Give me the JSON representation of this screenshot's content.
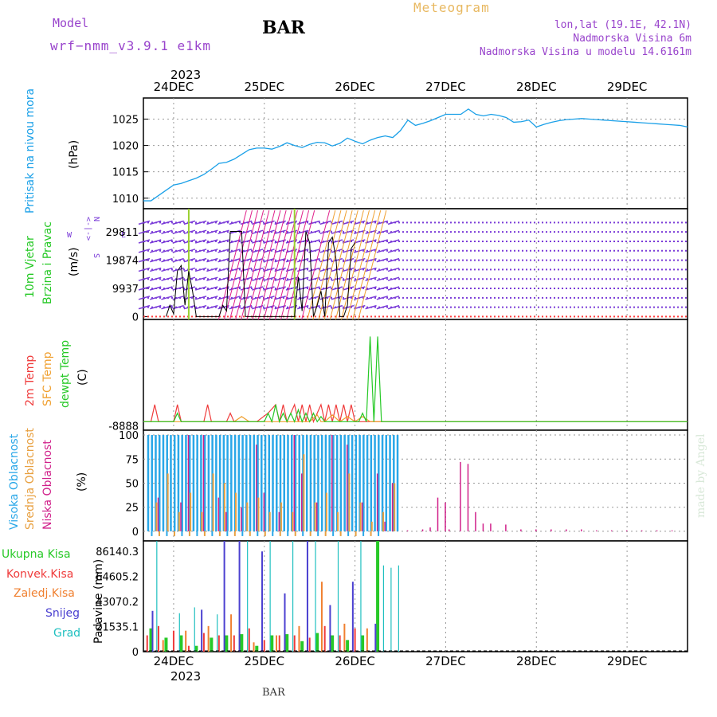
{
  "header": {
    "model_label": "Model",
    "model_name": "wrf−nmm_v3.9.1 e1km",
    "station": "BAR",
    "chart_title": "Meteogram",
    "lonlat": "lon,lat (19.1E, 42.1N)",
    "elevation": "Nadmorska Visina 6m",
    "model_elevation": "Nadmorska Visina u modelu 14.6161m"
  },
  "footer": {
    "station": "BAR",
    "watermark": "made by Angel"
  },
  "colors": {
    "pressure": "#1aa0e8",
    "temp2m": "#ef3b3b",
    "sfctemp": "#f0a030",
    "dewpt": "#27c927",
    "high_cloud": "#29a7e8",
    "mid_cloud": "#e8a040",
    "low_cloud": "#d0208a",
    "wind_label": "#27c927",
    "wind_speed": "#000000",
    "wind_barb": "#7a3bd8",
    "precip_total": "#27c927",
    "precip_conv": "#ef3b3b",
    "precip_ice": "#f08030",
    "precip_snow": "#4b40d0",
    "precip_grad": "#20c0c0",
    "header_purple": "#9944cc",
    "title_orange": "#e8b860"
  },
  "chart_data": [
    {
      "type": "line",
      "panel": "pressure",
      "ylabel_name": "Pritisak na nivou mora",
      "ylabel_unit": "(hPa)",
      "xlabels_top": [
        "24DEC",
        "25DEC",
        "26DEC",
        "27DEC",
        "28DEC",
        "29DEC"
      ],
      "year": "2023",
      "ylim": [
        1008,
        1029
      ],
      "yticks": [
        "1010",
        "1015",
        "1020",
        "1025"
      ],
      "x": [
        0,
        2,
        4,
        6,
        8,
        10,
        12,
        14,
        16,
        18,
        20,
        22,
        24,
        26,
        28,
        30,
        32,
        34,
        36,
        38,
        40,
        42,
        44,
        46,
        48,
        50,
        52,
        54,
        56,
        58,
        60,
        62,
        64,
        66,
        68,
        70,
        72,
        74,
        76,
        78,
        80,
        82,
        84,
        86,
        88,
        90,
        92,
        94,
        96,
        98,
        100,
        102,
        104,
        106,
        108,
        110,
        112,
        114,
        116,
        118,
        120,
        122,
        124,
        126,
        128,
        130,
        132,
        134,
        136,
        138,
        140,
        142,
        144
      ],
      "values": [
        1009.5,
        1009.5,
        1010.5,
        1011.5,
        1012.5,
        1012.8,
        1013.3,
        1013.8,
        1014.5,
        1015.5,
        1016.6,
        1016.8,
        1017.4,
        1018.3,
        1019.2,
        1019.5,
        1019.5,
        1019.3,
        1019.8,
        1020.5,
        1020.0,
        1019.6,
        1020.2,
        1020.6,
        1020.5,
        1019.9,
        1020.4,
        1021.4,
        1020.8,
        1020.3,
        1021.0,
        1021.5,
        1021.8,
        1021.5,
        1022.8,
        1024.8,
        1023.8,
        1024.2,
        1024.7,
        1025.3,
        1025.9,
        1025.9,
        1025.9,
        1026.9,
        1025.9,
        1025.6,
        1025.9,
        1025.7,
        1025.3,
        1024.4,
        1024.5,
        1024.8,
        1023.5,
        1024.0,
        1024.4,
        1024.7,
        1024.9,
        1025.0,
        1025.1,
        1025.0,
        1024.9,
        1024.8,
        1024.7,
        1024.6,
        1024.5,
        1024.4,
        1024.3,
        1024.2,
        1024.1,
        1024.0,
        1023.9,
        1023.8,
        1023.5
      ]
    },
    {
      "type": "line",
      "panel": "wind",
      "ylabel_name": "10m Vjetar",
      "ylabel_name2": "Brzina i Pravac",
      "ylabel_unit": "(m/s)",
      "compass": [
        "N",
        "<-|->",
        "W",
        "E",
        "S"
      ],
      "ylim": [
        -1000,
        38000
      ],
      "yticks": [
        "0",
        "9937",
        "19874",
        "29811"
      ],
      "speed_x": [
        6,
        7,
        8,
        9,
        10,
        11,
        12,
        13,
        14,
        20,
        21,
        22,
        23,
        24,
        25,
        26,
        27,
        40,
        41,
        42,
        43,
        44,
        45,
        46,
        47,
        48,
        49,
        50,
        51,
        52,
        53,
        54,
        55,
        56
      ],
      "speed_values": [
        0,
        4000,
        1000,
        16000,
        18000,
        4000,
        16000,
        9000,
        0,
        0,
        4000,
        2000,
        30000,
        30000,
        30000,
        30000,
        0,
        0,
        14000,
        2000,
        30000,
        26000,
        0,
        4000,
        9000,
        0,
        26000,
        28000,
        20000,
        0,
        0,
        4000,
        24000,
        26000
      ],
      "barb_levels": [
        0,
        3312,
        6624,
        9937,
        13249,
        16561,
        19874,
        23186,
        26498,
        29811,
        33123
      ]
    },
    {
      "type": "line",
      "panel": "temperature",
      "ylabel_names": [
        "2m Temp",
        "SFC Temp",
        "dewpt Temp"
      ],
      "ylabel_unit": "(C)",
      "ytick_label": "-8888",
      "series": [
        {
          "name": "2m Temp",
          "x": [
            0,
            2,
            3,
            4,
            8,
            9,
            10,
            16,
            17,
            18,
            22,
            23,
            24,
            26,
            28,
            30,
            33,
            35,
            36,
            37,
            38,
            40,
            41,
            42,
            43,
            44,
            45,
            46,
            47,
            48,
            49,
            50,
            51,
            52,
            53,
            54,
            55,
            56,
            57,
            58,
            60,
            62,
            64,
            66,
            68,
            144
          ],
          "values": [
            0,
            0,
            1,
            0,
            0,
            1,
            0,
            0,
            1,
            0,
            0,
            0.5,
            0,
            0,
            0,
            0,
            0.5,
            1,
            0,
            1,
            0,
            1,
            0,
            1,
            0,
            1,
            0,
            0.5,
            1,
            0,
            1,
            0,
            1,
            0,
            1,
            0,
            1,
            0,
            0,
            0,
            0,
            0,
            0,
            0,
            0,
            0
          ]
        },
        {
          "name": "SFC Temp",
          "x": [
            0,
            20,
            22,
            24,
            26,
            28,
            30,
            44,
            46,
            47,
            48,
            50,
            52,
            54,
            56,
            58,
            60,
            144
          ],
          "values": [
            0,
            0,
            0,
            0,
            0.3,
            0,
            0,
            0,
            0.4,
            0,
            0,
            0.4,
            0,
            0.3,
            0,
            0.3,
            0,
            0
          ]
        },
        {
          "name": "dewpt Temp",
          "x": [
            0,
            8,
            9,
            10,
            32,
            33,
            34,
            35,
            36,
            37,
            38,
            39,
            40,
            41,
            42,
            43,
            44,
            45,
            46,
            47,
            48,
            57,
            58,
            59,
            60,
            61,
            62,
            63,
            64,
            65,
            144
          ],
          "values": [
            0,
            0,
            0.5,
            0,
            0,
            0.5,
            0,
            1,
            0,
            0.5,
            0,
            0.5,
            0,
            0.7,
            0,
            0.5,
            0,
            0.5,
            0,
            0.3,
            0,
            0,
            0.5,
            0,
            5,
            0,
            5,
            0,
            0,
            0,
            0
          ]
        }
      ],
      "ylim": [
        -0.5,
        6
      ]
    },
    {
      "type": "bar",
      "panel": "clouds",
      "ylabel_names": [
        "Visoka Oblacnost",
        "Srednja Oblacnost",
        "Niska Oblacnost"
      ],
      "ylabel_unit": "(%)",
      "ylim": [
        -10,
        105
      ],
      "yticks": [
        "0",
        "25",
        "50",
        "75",
        "100"
      ],
      "series": [
        {
          "name": "Visoka Oblacnost",
          "x": [
            1,
            2,
            3,
            4,
            5,
            6,
            7,
            8,
            9,
            10,
            11,
            12,
            13,
            14,
            15,
            16,
            17,
            18,
            19,
            20,
            21,
            22,
            23,
            24,
            25,
            26,
            27,
            28,
            29,
            30,
            31,
            32,
            33,
            34,
            35,
            36,
            37,
            38,
            39,
            40,
            41,
            42,
            43,
            44,
            45,
            46,
            47,
            48,
            49,
            50,
            51,
            52,
            53,
            54,
            55,
            56,
            57,
            58,
            59,
            60,
            61,
            62,
            63,
            64,
            65,
            66,
            67
          ],
          "values": [
            100,
            100,
            100,
            100,
            100,
            100,
            100,
            100,
            100,
            100,
            100,
            100,
            100,
            100,
            100,
            100,
            100,
            100,
            100,
            100,
            100,
            100,
            100,
            100,
            100,
            100,
            100,
            100,
            100,
            100,
            100,
            100,
            100,
            100,
            100,
            100,
            100,
            100,
            100,
            100,
            100,
            100,
            100,
            100,
            100,
            100,
            100,
            100,
            100,
            100,
            100,
            100,
            100,
            100,
            100,
            100,
            100,
            100,
            100,
            100,
            100,
            100,
            100,
            100,
            100,
            100,
            100
          ]
        },
        {
          "name": "Srednja Oblacnost",
          "x": [
            3,
            6,
            9,
            12,
            15,
            18,
            21,
            24,
            27,
            30,
            33,
            36,
            39,
            42,
            45,
            48,
            51,
            54,
            57,
            60,
            63,
            66
          ],
          "values": [
            30,
            60,
            20,
            40,
            20,
            60,
            50,
            40,
            30,
            35,
            20,
            30,
            20,
            80,
            30,
            40,
            20,
            60,
            30,
            10,
            20,
            50
          ]
        },
        {
          "name": "Niska Oblacnost",
          "x": [
            4,
            10,
            12,
            16,
            20,
            22,
            26,
            30,
            32,
            36,
            40,
            42,
            46,
            50,
            54,
            58,
            62,
            64,
            66,
            70,
            74,
            76,
            78,
            80,
            81,
            84,
            86,
            88,
            90,
            92,
            96,
            100,
            104,
            108,
            112,
            116,
            120,
            124,
            128,
            132,
            136,
            140
          ],
          "values": [
            35,
            30,
            100,
            100,
            35,
            20,
            25,
            90,
            40,
            20,
            100,
            60,
            30,
            100,
            90,
            30,
            60,
            10,
            50,
            1,
            2,
            4,
            35,
            30,
            2,
            72,
            70,
            20,
            8,
            8,
            7,
            2,
            2,
            2,
            2,
            2,
            1,
            1,
            1,
            1,
            1,
            1
          ]
        }
      ]
    },
    {
      "type": "bar",
      "panel": "precipitation",
      "ylabel_names": [
        "Ukupna Kisa",
        "Konvek.Kisa",
        "Zaledj.Kisa",
        "Snijeg",
        "Grad"
      ],
      "ylabel_unit": "Padavine (mm)",
      "ylim": [
        0,
        95000
      ],
      "yticks": [
        "0",
        "21535.1",
        "43070.2",
        "64605.2",
        "86140.3"
      ],
      "xlabels_bottom": [
        "24DEC",
        "25DEC",
        "26DEC",
        "27DEC",
        "28DEC",
        "29DEC"
      ],
      "year": "2023",
      "series": [
        {
          "name": "Ukupna Kisa",
          "x": [
            2,
            6,
            10,
            14,
            18,
            22,
            26,
            30,
            34,
            38,
            42,
            46,
            50,
            54,
            58,
            62
          ],
          "values": [
            20000,
            12000,
            14000,
            5000,
            12000,
            14000,
            15000,
            5000,
            14000,
            15000,
            9000,
            16000,
            14000,
            10000,
            14000,
            95000
          ]
        },
        {
          "name": "Konvek.Kisa",
          "x": [
            1,
            4,
            8,
            12,
            16,
            20,
            24,
            28,
            32,
            36,
            40,
            44,
            48,
            52,
            56
          ],
          "values": [
            14000,
            22000,
            18000,
            5000,
            16000,
            14000,
            14000,
            20000,
            10000,
            14000,
            14000,
            12000,
            22000,
            14000,
            20000
          ]
        },
        {
          "name": "Zaledj.Kisa",
          "x": [
            5,
            11,
            17,
            23,
            29,
            35,
            41,
            47,
            53,
            59
          ],
          "values": [
            10000,
            18000,
            22000,
            32000,
            8000,
            14000,
            22000,
            60000,
            24000,
            20000
          ]
        },
        {
          "name": "Snijeg",
          "x": [
            2,
            15,
            21,
            25,
            31,
            37,
            43,
            49,
            55,
            61
          ],
          "values": [
            35000,
            36000,
            95000,
            95000,
            86000,
            50000,
            95000,
            40000,
            60000,
            24000
          ]
        },
        {
          "name": "Grad",
          "x": [
            3,
            9,
            13,
            19,
            27,
            33,
            39,
            45,
            51,
            57,
            63,
            65,
            67
          ],
          "values": [
            95000,
            33000,
            38000,
            32000,
            95000,
            95000,
            95000,
            95000,
            95000,
            95000,
            74000,
            72000,
            74000
          ]
        }
      ]
    }
  ]
}
